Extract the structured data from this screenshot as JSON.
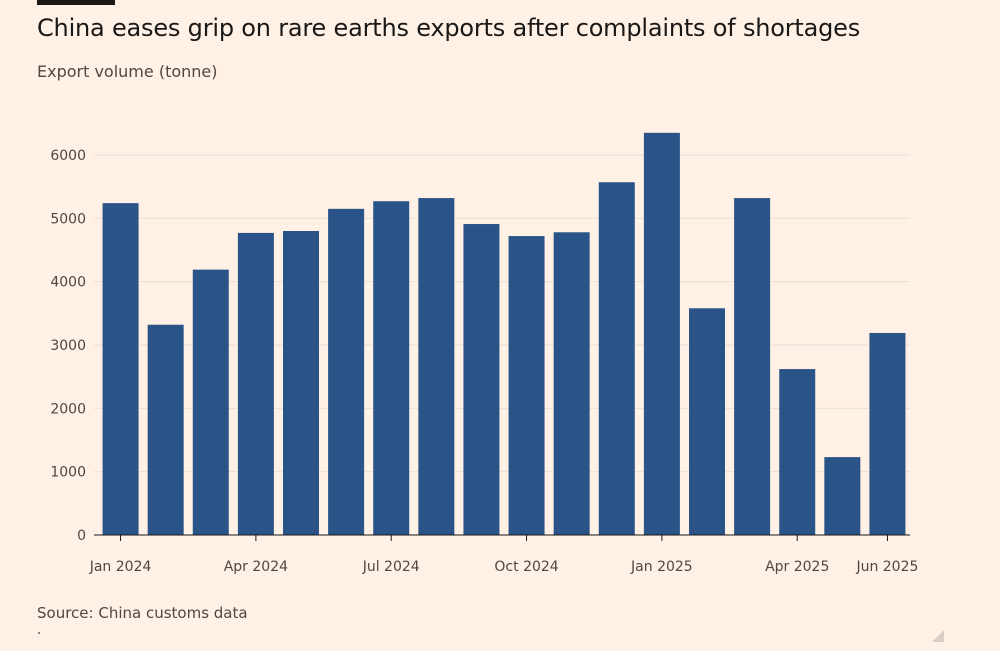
{
  "header": {
    "title": "China eases grip on rare earths exports after complaints of shortages",
    "subtitle": "Export volume (tonne)"
  },
  "footer": {
    "source": "Source: China customs data"
  },
  "colors": {
    "bar": "#2a5487",
    "grid": "#e8dfd6",
    "axis": "#1a1817",
    "background": "#fff1e5"
  },
  "chart_data": {
    "type": "bar",
    "title": "China eases grip on rare earths exports after complaints of shortages",
    "ylabel": "Export volume (tonne)",
    "xlabel": "",
    "ylim": [
      0,
      6500
    ],
    "yticks": [
      0,
      1000,
      2000,
      3000,
      4000,
      5000,
      6000
    ],
    "grid": true,
    "categories": [
      "Jan 2024",
      "Feb 2024",
      "Mar 2024",
      "Apr 2024",
      "May 2024",
      "Jun 2024",
      "Jul 2024",
      "Aug 2024",
      "Sep 2024",
      "Oct 2024",
      "Nov 2024",
      "Dec 2024",
      "Jan 2025",
      "Feb 2025",
      "Mar 2025",
      "Apr 2025",
      "May 2025",
      "Jun 2025"
    ],
    "xtick_labels": [
      "Jan 2024",
      "",
      "",
      "Apr 2024",
      "",
      "",
      "Jul 2024",
      "",
      "",
      "Oct 2024",
      "",
      "",
      "Jan 2025",
      "",
      "",
      "Apr 2025",
      "",
      "Jun 2025"
    ],
    "values": [
      5240,
      3320,
      4190,
      4770,
      4800,
      5150,
      5270,
      5320,
      4910,
      4720,
      4780,
      5570,
      6350,
      3580,
      5320,
      2620,
      1230,
      3190
    ]
  }
}
